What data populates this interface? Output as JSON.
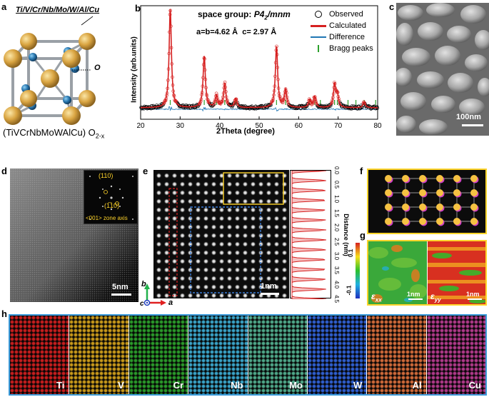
{
  "panels": {
    "a": {
      "label": "a",
      "composition_top": "Ti/V/Cr/Nb/Mo/W/Al/Cu",
      "oxygen_label": "O",
      "formula_main": "(TiVCrNbMoWAlCu) O",
      "formula_sub": "2-x",
      "colors": {
        "metal": "#d9a441",
        "oxygen": "#2a78b0",
        "bond": "#9aa0a6"
      }
    },
    "b": {
      "label": "b",
      "space_group_prefix": "space group: ",
      "space_group": "P4",
      "space_group_sub": "2",
      "space_group_suffix": "/mnm",
      "lattice": "a=b=4.62 Å  c= 2.97 Å",
      "legend": {
        "observed": "Observed",
        "calculated": "Calculated",
        "difference": "Difference",
        "bragg": "Bragg peaks"
      },
      "colors": {
        "observed": "#000000",
        "calculated": "#d62020",
        "difference": "#1f77b4",
        "bragg": "#2ca02c"
      }
    },
    "c": {
      "label": "c",
      "scale_text": "100nm"
    },
    "d": {
      "label": "d",
      "fft_spot1": "(110)",
      "fft_spot2": "(1̅10)",
      "zone_axis": "<001> zone axis",
      "scale_text": "5nm"
    },
    "e": {
      "label": "e",
      "scale_text": "1nm",
      "axis_b": "b",
      "axis_a": "a",
      "axis_c": "c",
      "profile_ylabel": "Distance (nm)",
      "profile_ticks": [
        "0.0",
        "0.5",
        "1.0",
        "1.5",
        "2.0",
        "2.5",
        "3.0",
        "3.5",
        "4.0",
        "4.5"
      ]
    },
    "f": {
      "label": "f"
    },
    "g": {
      "label": "g",
      "cbar_max": "0.1",
      "cbar_min": "-0.1",
      "exx": "ε",
      "exx_sub": "xx",
      "eyy": "ε",
      "eyy_sub": "yy",
      "scale_text": "1nm"
    },
    "h": {
      "label": "h",
      "elements": [
        {
          "name": "Ti",
          "color": "#c81e1e"
        },
        {
          "name": "V",
          "color": "#c99a1b"
        },
        {
          "name": "Cr",
          "color": "#2a9a2a"
        },
        {
          "name": "Nb",
          "color": "#3aa4c8"
        },
        {
          "name": "Mo",
          "color": "#4fa88a"
        },
        {
          "name": "W",
          "color": "#2f5fd0"
        },
        {
          "name": "Al",
          "color": "#d06a3a"
        },
        {
          "name": "Cu",
          "color": "#b03a8a"
        }
      ]
    }
  },
  "chart_data": {
    "type": "line",
    "xlabel": "2Theta (degree)",
    "ylabel": "Intensity (arb.units)",
    "xlim": [
      20,
      80
    ],
    "xticks": [
      20,
      30,
      40,
      50,
      60,
      70,
      80
    ],
    "peaks": [
      {
        "x": 27.5,
        "y": 1.0
      },
      {
        "x": 36.1,
        "y": 0.52
      },
      {
        "x": 39.2,
        "y": 0.12
      },
      {
        "x": 41.3,
        "y": 0.24
      },
      {
        "x": 44.1,
        "y": 0.09
      },
      {
        "x": 54.4,
        "y": 0.62
      },
      {
        "x": 56.7,
        "y": 0.18
      },
      {
        "x": 62.8,
        "y": 0.08
      },
      {
        "x": 64.1,
        "y": 0.11
      },
      {
        "x": 69.1,
        "y": 0.23
      },
      {
        "x": 69.8,
        "y": 0.12
      },
      {
        "x": 76.6,
        "y": 0.06
      }
    ],
    "bragg_positions": [
      27.5,
      36.1,
      39.2,
      41.3,
      44.1,
      54.4,
      56.7,
      62.8,
      64.1,
      65.5,
      69.1,
      69.8,
      72.5,
      74.5,
      76.6,
      79.5
    ]
  }
}
